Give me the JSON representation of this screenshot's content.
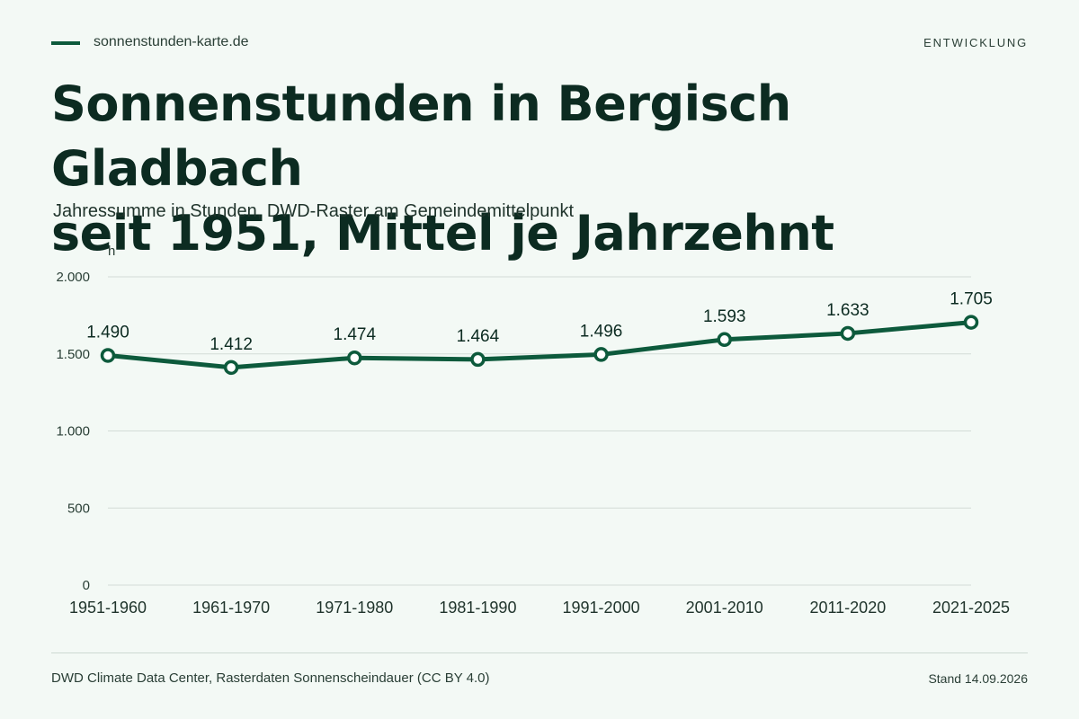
{
  "header": {
    "brand": "sonnenstunden-karte.de",
    "section": "ENTWICKLUNG"
  },
  "title_line1": "Sonnenstunden in Bergisch Gladbach",
  "title_line2": "seit 1951, Mittel je Jahrzehnt",
  "subtitle": "Jahressumme in Stunden, DWD-Raster am Gemeindemittelpunkt",
  "footer": {
    "source": "DWD Climate Data Center, Rasterdaten Sonnenscheindauer (CC BY 4.0)",
    "stand": "Stand 14.09.2026"
  },
  "colors": {
    "line": "#0d5a3c",
    "background": "#f3f9f5",
    "grid": "#d3dcd7"
  },
  "chart_data": {
    "type": "line",
    "ylabel": "h",
    "ylim": [
      0,
      2000
    ],
    "yticks": [
      0,
      500,
      1000,
      1500,
      2000
    ],
    "ytick_labels": [
      "0",
      "500",
      "1.000",
      "1.500",
      "2.000"
    ],
    "grid": true,
    "categories": [
      "1951-1960",
      "1961-1970",
      "1971-1980",
      "1981-1990",
      "1991-2000",
      "2001-2010",
      "2011-2020",
      "2021-2025"
    ],
    "series": [
      {
        "values": [
          1490,
          1412,
          1474,
          1464,
          1496,
          1593,
          1633,
          1705
        ],
        "labels": [
          "1.490",
          "1.412",
          "1.474",
          "1.464",
          "1.496",
          "1.593",
          "1.633",
          "1.705"
        ]
      }
    ]
  }
}
